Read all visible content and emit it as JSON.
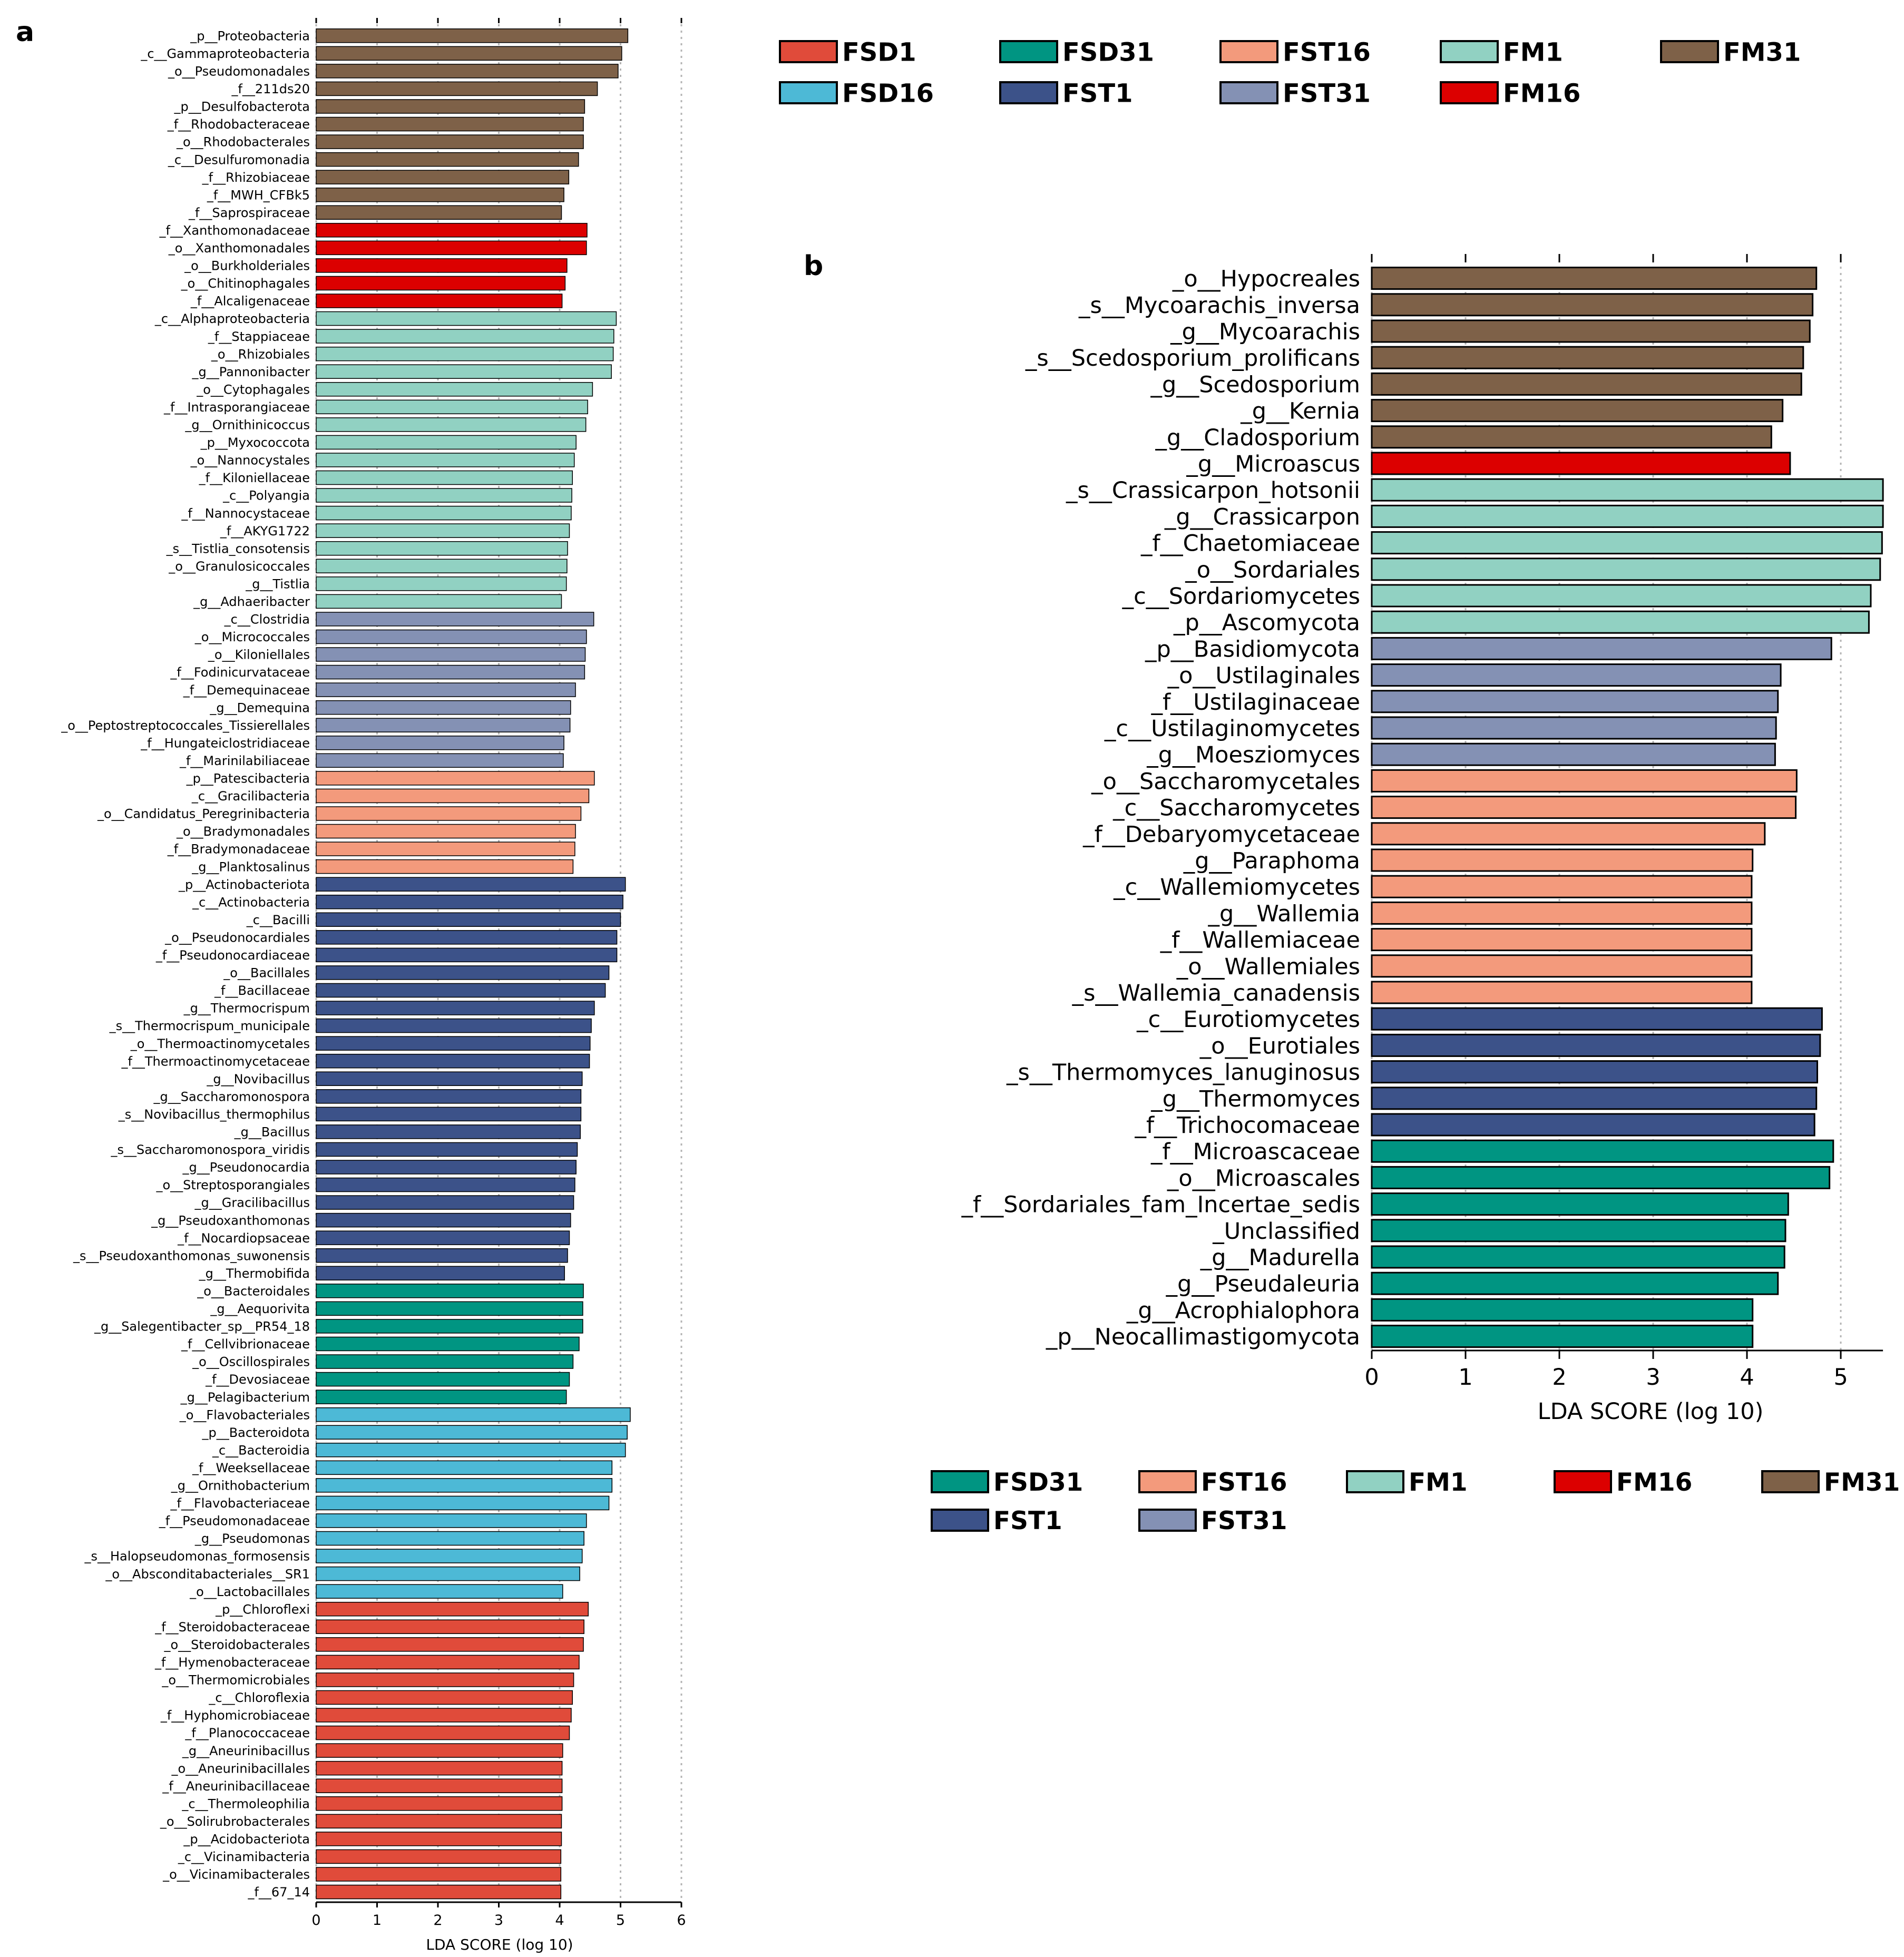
{
  "figure": {
    "panel_a_letter": "a",
    "panel_b_letter": "b"
  },
  "colors": {
    "FSD1": "#e04b3a",
    "FSD16": "#4db9d6",
    "FSD31": "#009582",
    "FST1": "#3c5289",
    "FST16": "#f39a7c",
    "FST31": "#8491b4",
    "FM1": "#91d1c2",
    "FM16": "#dc0000",
    "FM31": "#7e6148"
  },
  "chart_data": [
    {
      "type": "bar",
      "orientation": "horizontal",
      "panel": "a",
      "xlabel": "LDA SCORE (log 10)",
      "xlim": [
        0,
        6
      ],
      "xticks": [
        0,
        1,
        2,
        3,
        4,
        5,
        6
      ],
      "grid": true,
      "legend": {
        "placement": "top-right",
        "columns": 5,
        "entries": [
          "FSD1",
          "FSD31",
          "FST16",
          "FM1",
          "FM31",
          "FSD16",
          "FST1",
          "FST31",
          "FM16"
        ]
      },
      "groups": [
        {
          "name": "FM31",
          "items": [
            [
              "_p__Proteobacteria",
              5.12
            ],
            [
              "_c__Gammaproteobacteria",
              5.02
            ],
            [
              "_o__Pseudomonadales",
              4.96
            ],
            [
              "_f__211ds20",
              4.62
            ],
            [
              "_p__Desulfobacterota",
              4.41
            ],
            [
              "_f__Rhodobacteraceae",
              4.39
            ],
            [
              "_o__Rhodobacterales",
              4.39
            ],
            [
              "_c__Desulfuromonadia",
              4.31
            ],
            [
              "_f__Rhizobiaceae",
              4.15
            ],
            [
              "_f__MWH_CFBk5",
              4.07
            ],
            [
              "_f__Saprospiraceae",
              4.03
            ]
          ]
        },
        {
          "name": "FM16",
          "items": [
            [
              "_f__Xanthomonadaceae",
              4.45
            ],
            [
              "_o__Xanthomonadales",
              4.44
            ],
            [
              "_o__Burkholderiales",
              4.12
            ],
            [
              "_o__Chitinophagales",
              4.09
            ],
            [
              "_f__Alcaligenaceae",
              4.04
            ]
          ]
        },
        {
          "name": "FM1",
          "items": [
            [
              "_c__Alphaproteobacteria",
              4.93
            ],
            [
              "_f__Stappiaceae",
              4.89
            ],
            [
              "_o__Rhizobiales",
              4.88
            ],
            [
              "_g__Pannonibacter",
              4.85
            ],
            [
              "_o__Cytophagales",
              4.54
            ],
            [
              "_f__Intrasporangiaceae",
              4.46
            ],
            [
              "_g__Ornithinicoccus",
              4.43
            ],
            [
              "_p__Myxococcota",
              4.27
            ],
            [
              "_o__Nannocystales",
              4.24
            ],
            [
              "_f__Kiloniellaceae",
              4.21
            ],
            [
              "_c__Polyangia",
              4.2
            ],
            [
              "_f__Nannocystaceae",
              4.19
            ],
            [
              "_f__AKYG1722",
              4.16
            ],
            [
              "_s__Tistlia_consotensis",
              4.13
            ],
            [
              "_o__Granulosicoccales",
              4.12
            ],
            [
              "_g__Tistlia",
              4.11
            ],
            [
              "_g__Adhaeribacter",
              4.03
            ]
          ]
        },
        {
          "name": "FST31",
          "items": [
            [
              "_c__Clostridia",
              4.56
            ],
            [
              "_o__Micrococcales",
              4.44
            ],
            [
              "_o__Kiloniellales",
              4.42
            ],
            [
              "_f__Fodinicurvataceae",
              4.41
            ],
            [
              "_f__Demequinaceae",
              4.26
            ],
            [
              "_g__Demequina",
              4.18
            ],
            [
              "_o__Peptostreptococcales_Tissierellales",
              4.17
            ],
            [
              "_f__Hungateiclostridiaceae",
              4.07
            ],
            [
              "_f__Marinilabiliaceae",
              4.06
            ]
          ]
        },
        {
          "name": "FST16",
          "items": [
            [
              "_p__Patescibacteria",
              4.57
            ],
            [
              "_c__Gracilibacteria",
              4.48
            ],
            [
              "_o__Candidatus_Peregrinibacteria",
              4.35
            ],
            [
              "_o__Bradymonadales",
              4.26
            ],
            [
              "_f__Bradymonadaceae",
              4.25
            ],
            [
              "_g__Planktosalinus",
              4.22
            ]
          ]
        },
        {
          "name": "FST1",
          "items": [
            [
              "_p__Actinobacteriota",
              5.08
            ],
            [
              "_c__Actinobacteria",
              5.04
            ],
            [
              "_c__Bacilli",
              5.0
            ],
            [
              "_o__Pseudonocardiales",
              4.94
            ],
            [
              "_f__Pseudonocardiaceae",
              4.94
            ],
            [
              "_o__Bacillales",
              4.81
            ],
            [
              "_f__Bacillaceae",
              4.75
            ],
            [
              "_g__Thermocrispum",
              4.57
            ],
            [
              "_s__Thermocrispum_municipale",
              4.52
            ],
            [
              "_o__Thermoactinomycetales",
              4.5
            ],
            [
              "_f__Thermoactinomycetaceae",
              4.49
            ],
            [
              "_g__Novibacillus",
              4.37
            ],
            [
              "_g__Saccharomonospora",
              4.35
            ],
            [
              "_s__Novibacillus_thermophilus",
              4.35
            ],
            [
              "_g__Bacillus",
              4.34
            ],
            [
              "_s__Saccharomonospora_viridis",
              4.29
            ],
            [
              "_g__Pseudonocardia",
              4.27
            ],
            [
              "_o__Streptosporangiales",
              4.25
            ],
            [
              "_g__Gracilibacillus",
              4.23
            ],
            [
              "_g__Pseudoxanthomonas",
              4.18
            ],
            [
              "_f__Nocardiopsaceae",
              4.16
            ],
            [
              "_s__Pseudoxanthomonas_suwonensis",
              4.13
            ],
            [
              "_g__Thermobifida",
              4.08
            ]
          ]
        },
        {
          "name": "FSD31",
          "items": [
            [
              "_o__Bacteroidales",
              4.39
            ],
            [
              "_g__Aequorivita",
              4.38
            ],
            [
              "_g__Salegentibacter_sp__PR54_18",
              4.38
            ],
            [
              "_f__Cellvibrionaceae",
              4.32
            ],
            [
              "_o__Oscillospirales",
              4.22
            ],
            [
              "_f__Devosiaceae",
              4.16
            ],
            [
              "_g__Pelagibacterium",
              4.11
            ]
          ]
        },
        {
          "name": "FSD16",
          "items": [
            [
              "_o__Flavobacteriales",
              5.16
            ],
            [
              "_p__Bacteroidota",
              5.11
            ],
            [
              "_c__Bacteroidia",
              5.08
            ],
            [
              "_f__Weeksellaceae",
              4.86
            ],
            [
              "_g__Ornithobacterium",
              4.86
            ],
            [
              "_f__Flavobacteriaceae",
              4.81
            ],
            [
              "_f__Pseudomonadaceae",
              4.44
            ],
            [
              "_g__Pseudomonas",
              4.4
            ],
            [
              "_s__Halopseudomonas_formosensis",
              4.37
            ],
            [
              "_o__Absconditabacteriales__SR1",
              4.33
            ],
            [
              "_o__Lactobacillales",
              4.05
            ]
          ]
        },
        {
          "name": "FSD1",
          "items": [
            [
              "_p__Chloroflexi",
              4.47
            ],
            [
              "_f__Steroidobacteraceae",
              4.4
            ],
            [
              "_o__Steroidobacterales",
              4.39
            ],
            [
              "_f__Hymenobacteraceae",
              4.32
            ],
            [
              "_o__Thermomicrobiales",
              4.23
            ],
            [
              "_c__Chloroflexia",
              4.21
            ],
            [
              "_f__Hyphomicrobiaceae",
              4.19
            ],
            [
              "_f__Planococcaceae",
              4.16
            ],
            [
              "_g__Aneurinibacillus",
              4.05
            ],
            [
              "_o__Aneurinibacillales",
              4.04
            ],
            [
              "_f__Aneurinibacillaceae",
              4.04
            ],
            [
              "_c__Thermoleophilia",
              4.04
            ],
            [
              "_o__Solirubrobacterales",
              4.03
            ],
            [
              "_p__Acidobacteriota",
              4.03
            ],
            [
              "_c__Vicinamibacteria",
              4.02
            ],
            [
              "_o__Vicinamibacterales",
              4.02
            ],
            [
              "_f__67_14",
              4.02
            ]
          ]
        }
      ]
    },
    {
      "type": "bar",
      "orientation": "horizontal",
      "panel": "b",
      "xlabel": "LDA SCORE (log 10)",
      "xlim": [
        0,
        5.45
      ],
      "xticks": [
        0,
        1,
        2,
        3,
        4,
        5
      ],
      "grid": true,
      "legend": {
        "placement": "bottom",
        "columns": 5,
        "entries": [
          "FSD31",
          "FST16",
          "FM1",
          "FM16",
          "FM31",
          "FST1",
          "FST31"
        ]
      },
      "groups": [
        {
          "name": "FM31",
          "items": [
            [
              "_o__Hypocreales",
              4.74
            ],
            [
              "_s__Mycoarachis_inversa",
              4.7
            ],
            [
              "_g__Mycoarachis",
              4.67
            ],
            [
              "_s__Scedosporium_prolificans",
              4.6
            ],
            [
              "_g__Scedosporium",
              4.58
            ],
            [
              "_g__Kernia",
              4.38
            ],
            [
              "_g__Cladosporium",
              4.26
            ]
          ]
        },
        {
          "name": "FM16",
          "items": [
            [
              "_g__Microascus",
              4.46
            ]
          ]
        },
        {
          "name": "FM1",
          "items": [
            [
              "_s__Crassicarpon_hotsonii",
              5.45
            ],
            [
              "_g__Crassicarpon",
              5.45
            ],
            [
              "_f__Chaetomiaceae",
              5.44
            ],
            [
              "_o__Sordariales",
              5.42
            ],
            [
              "_c__Sordariomycetes",
              5.32
            ],
            [
              "_p__Ascomycota",
              5.3
            ]
          ]
        },
        {
          "name": "FST31",
          "items": [
            [
              "_p__Basidiomycota",
              4.9
            ],
            [
              "_o__Ustilaginales",
              4.36
            ],
            [
              "_f__Ustilaginaceae",
              4.33
            ],
            [
              "_c__Ustilaginomycetes",
              4.31
            ],
            [
              "_g__Moesziomyces",
              4.3
            ]
          ]
        },
        {
          "name": "FST16",
          "items": [
            [
              "_o__Saccharomycetales",
              4.53
            ],
            [
              "_c__Saccharomycetes",
              4.52
            ],
            [
              "_f__Debaryomycetaceae",
              4.19
            ],
            [
              "_g__Paraphoma",
              4.06
            ],
            [
              "_c__Wallemiomycetes",
              4.05
            ],
            [
              "_g__Wallemia",
              4.05
            ],
            [
              "_f__Wallemiaceae",
              4.05
            ],
            [
              "_o__Wallemiales",
              4.05
            ],
            [
              "_s__Wallemia_canadensis",
              4.05
            ]
          ]
        },
        {
          "name": "FST1",
          "items": [
            [
              "_c__Eurotiomycetes",
              4.8
            ],
            [
              "_o__Eurotiales",
              4.78
            ],
            [
              "_s__Thermomyces_lanuginosus",
              4.75
            ],
            [
              "_g__Thermomyces",
              4.74
            ],
            [
              "_f__Trichocomaceae",
              4.72
            ]
          ]
        },
        {
          "name": "FSD31",
          "items": [
            [
              "_f__Microascaceae",
              4.92
            ],
            [
              "_o__Microascales",
              4.88
            ],
            [
              "_f__Sordariales_fam_Incertae_sedis",
              4.44
            ],
            [
              "_Unclassified",
              4.41
            ],
            [
              "_g__Madurella",
              4.4
            ],
            [
              "_g__Pseudaleuria",
              4.33
            ],
            [
              "_g__Acrophialophora",
              4.06
            ],
            [
              "_p__Neocallimastigomycota",
              4.06
            ]
          ]
        }
      ]
    }
  ]
}
